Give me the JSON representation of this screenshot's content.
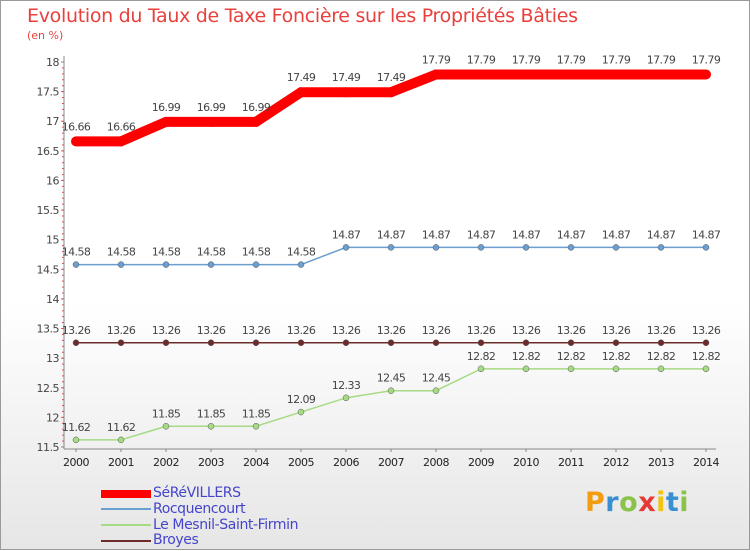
{
  "chart_data": {
    "type": "line",
    "title": "Evolution du Taux de Taxe Foncière sur les Propriétés Bâties",
    "ylabel": "(en %)",
    "xlabel": "",
    "x": [
      "2000",
      "2001",
      "2002",
      "2003",
      "2004",
      "2005",
      "2006",
      "2007",
      "2008",
      "2009",
      "2010",
      "2011",
      "2012",
      "2013",
      "2014"
    ],
    "ylim": [
      11.5,
      18
    ],
    "yticks": [
      "11.5",
      "12",
      "12.5",
      "13",
      "13.5",
      "14",
      "14.5",
      "15",
      "15.5",
      "16",
      "16.5",
      "17",
      "17.5",
      "18"
    ],
    "grid": false,
    "legend_position": "bottom-left",
    "series": [
      {
        "name": "SéRéVILLERS",
        "color": "#ff0000",
        "values": [
          16.66,
          16.66,
          16.99,
          16.99,
          16.99,
          17.49,
          17.49,
          17.49,
          17.79,
          17.79,
          17.79,
          17.79,
          17.79,
          17.79,
          17.79
        ],
        "labels": [
          "16.66",
          "16.66",
          "16.99",
          "16.99",
          "16.99",
          "17.49",
          "17.49",
          "17.49",
          "17.79",
          "17.79",
          "17.79",
          "17.79",
          "17.79",
          "17.79",
          "17.79"
        ]
      },
      {
        "name": "Rocquencourt",
        "color": "#6a9fd0",
        "values": [
          14.58,
          14.58,
          14.58,
          14.58,
          14.58,
          14.58,
          14.87,
          14.87,
          14.87,
          14.87,
          14.87,
          14.87,
          14.87,
          14.87,
          14.87
        ],
        "labels": [
          "14.58",
          "14.58",
          "14.58",
          "14.58",
          "14.58",
          "14.58",
          "14.87",
          "14.87",
          "14.87",
          "14.87",
          "14.87",
          "14.87",
          "14.87",
          "14.87",
          "14.87"
        ]
      },
      {
        "name": "Le Mesnil-Saint-Firmin",
        "color": "#a6db84",
        "values": [
          11.62,
          11.62,
          11.85,
          11.85,
          11.85,
          12.09,
          12.33,
          12.45,
          12.45,
          12.82,
          12.82,
          12.82,
          12.82,
          12.82,
          12.82
        ],
        "labels": [
          "11.62",
          "11.62",
          "11.85",
          "11.85",
          "11.85",
          "12.09",
          "12.33",
          "12.45",
          "12.45",
          "12.82",
          "12.82",
          "12.82",
          "12.82",
          "12.82",
          "12.82"
        ]
      },
      {
        "name": "Broyes",
        "color": "#6e2b2b",
        "values": [
          13.26,
          13.26,
          13.26,
          13.26,
          13.26,
          13.26,
          13.26,
          13.26,
          13.26,
          13.26,
          13.26,
          13.26,
          13.26,
          13.26,
          13.26
        ],
        "labels": [
          "13.26",
          "13.26",
          "13.26",
          "13.26",
          "13.26",
          "13.26",
          "13.26",
          "13.26",
          "13.26",
          "13.26",
          "13.26",
          "13.26",
          "13.26",
          "13.26",
          "13.26"
        ]
      }
    ]
  },
  "logo": {
    "text": "Proxiti"
  }
}
